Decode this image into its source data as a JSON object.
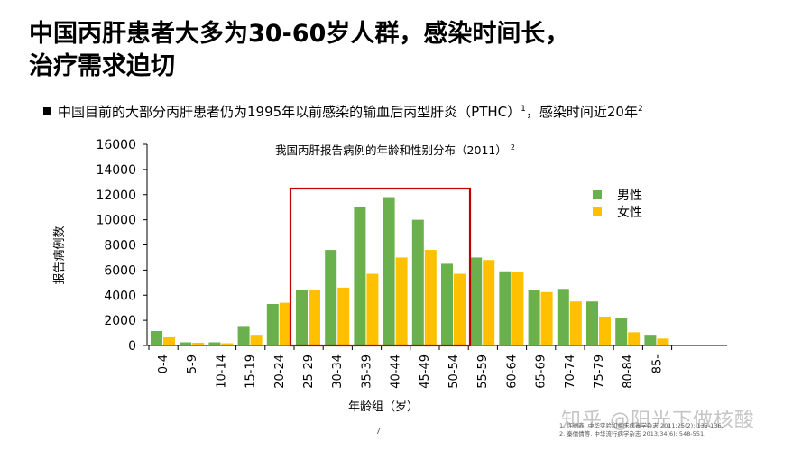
{
  "slide": {
    "title_line1": "中国丙肝患者大多为30-60岁人群，感染时间长，",
    "title_line2": "治疗需求迫切",
    "bullet_text": "中国目前的大部分丙肝患者仍为1995年以前感染的输血后丙型肝炎（PTHC）",
    "bullet_sup1": "1",
    "bullet_text2": "，感染时间近20年",
    "bullet_sup2": "2",
    "page_number": "7",
    "references": [
      "1. 许德鑫. 中华实验和临床病毒学杂志 2011;25(2): 135-136.",
      "2. 秦倩倩等. 中华流行病学杂志 2013;34(6): 548-551."
    ],
    "watermark": "知乎 @阳光下做核酸"
  },
  "chart_data": {
    "type": "bar",
    "title": "我国丙肝报告病例的年龄和性别分布（2011）",
    "title_sup": "2",
    "xlabel": "年龄组（岁）",
    "ylabel": "报告病例数",
    "ylim": [
      0,
      16000
    ],
    "yticks": [
      0,
      2000,
      4000,
      6000,
      8000,
      10000,
      12000,
      14000,
      16000
    ],
    "legend_position": "top-right",
    "highlight_range": [
      "25-29",
      "50-54"
    ],
    "highlight_color": "#c00000",
    "categories": [
      "0-4",
      "5-9",
      "10-14",
      "15-19",
      "20-24",
      "25-29",
      "30-34",
      "35-39",
      "40-44",
      "45-49",
      "50-54",
      "55-59",
      "60-64",
      "65-69",
      "70-74",
      "75-79",
      "80-84",
      "85-"
    ],
    "series": [
      {
        "name": "男性",
        "color": "#6ab04c",
        "values": [
          1150,
          250,
          250,
          1550,
          3300,
          4400,
          7600,
          11000,
          11800,
          10000,
          6500,
          7000,
          5900,
          4400,
          4500,
          3500,
          2200,
          850
        ]
      },
      {
        "name": "女性",
        "color": "#ffc000",
        "values": [
          650,
          220,
          180,
          850,
          3400,
          4400,
          4600,
          5700,
          7000,
          7600,
          5700,
          6800,
          5850,
          4250,
          3500,
          2300,
          1050,
          550
        ]
      }
    ]
  }
}
